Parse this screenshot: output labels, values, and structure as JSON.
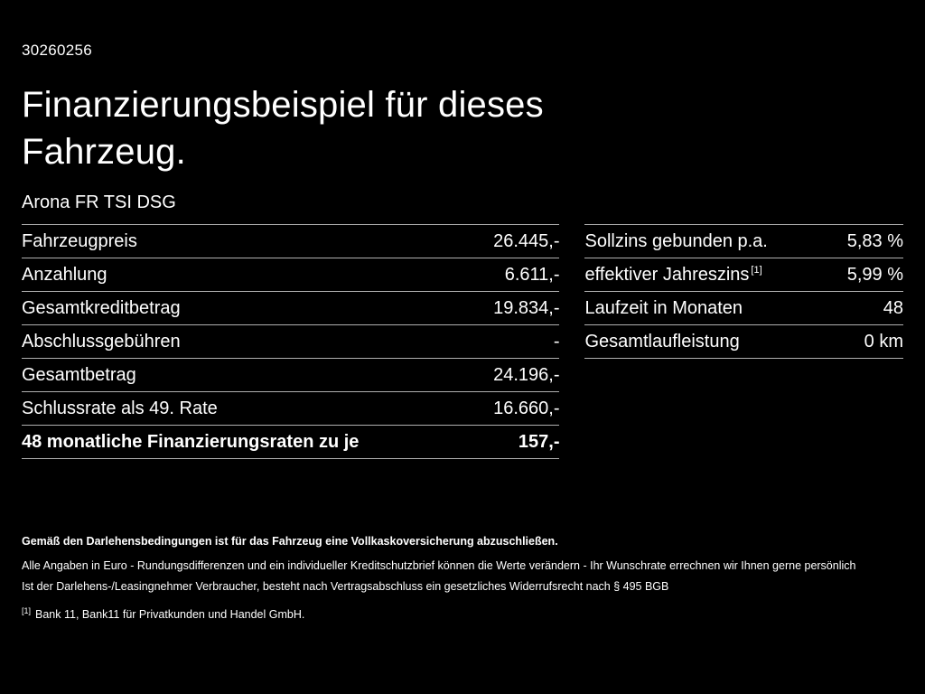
{
  "meta": {
    "doc_number": "30260256"
  },
  "header": {
    "title": "Finanzierungsbeispiel für dieses Fahrzeug.",
    "vehicle": "Arona FR TSI DSG"
  },
  "colors": {
    "background": "#000000",
    "text": "#ffffff",
    "rule": "#b0b0b0"
  },
  "finance_table": {
    "rows": [
      {
        "label": "Fahrzeugpreis",
        "value": "26.445,-"
      },
      {
        "label": "Anzahlung",
        "value": "6.611,-"
      },
      {
        "label": "Gesamtkreditbetrag",
        "value": "19.834,-"
      },
      {
        "label": "Abschlussgebühren",
        "value": "-"
      },
      {
        "label": "Gesamtbetrag",
        "value": "24.196,-"
      },
      {
        "label": "Schlussrate als 49. Rate",
        "value": "16.660,-"
      },
      {
        "label": "48 monatliche Finanzierungsraten zu je",
        "value": "157,-"
      }
    ]
  },
  "conditions_table": {
    "rows": [
      {
        "label": "Sollzins gebunden p.a.",
        "value": "5,83 %"
      },
      {
        "label": "effektiver Jahreszins",
        "sup": "[1]",
        "value": "5,99 %"
      },
      {
        "label": "Laufzeit in Monaten",
        "value": "48"
      },
      {
        "label": "Gesamtlaufleistung",
        "value": "0 km"
      }
    ]
  },
  "footer": {
    "line_bold": "Gemäß den Darlehensbedingungen ist für das Fahrzeug eine Vollkaskoversicherung abzuschließen.",
    "line2": "Alle Angaben in Euro - Rundungsdifferenzen und ein individueller Kreditschutzbrief können die Werte verändern - Ihr Wunschrate errechnen wir Ihnen gerne persönlich",
    "line3": "Ist der Darlehens-/Leasingnehmer Verbraucher, besteht nach Vertragsabschluss ein gesetzliches Widerrufsrecht nach § 495 BGB",
    "footnote_marker": "[1]",
    "footnote_text": "Bank 11, Bank11 für Privatkunden und Handel GmbH."
  }
}
